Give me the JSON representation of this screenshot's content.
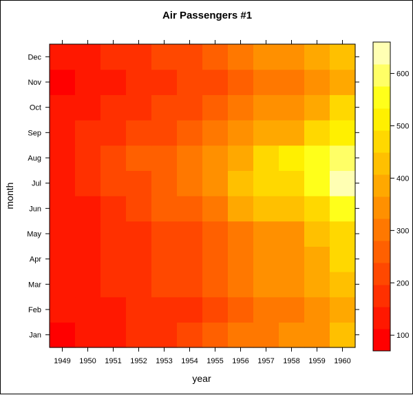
{
  "chart_data": {
    "type": "heatmap",
    "title": "Air Passengers #1",
    "xlabel": "year",
    "ylabel": "month",
    "x": [
      "1949",
      "1950",
      "1951",
      "1952",
      "1953",
      "1954",
      "1955",
      "1956",
      "1957",
      "1958",
      "1959",
      "1960"
    ],
    "y": [
      "Jan",
      "Feb",
      "Mar",
      "Apr",
      "May",
      "Jun",
      "Jul",
      "Aug",
      "Sep",
      "Oct",
      "Nov",
      "Dec"
    ],
    "values": [
      [
        112,
        115,
        145,
        171,
        196,
        204,
        242,
        284,
        315,
        340,
        360,
        417
      ],
      [
        118,
        126,
        150,
        180,
        196,
        188,
        233,
        277,
        301,
        318,
        342,
        391
      ],
      [
        132,
        141,
        178,
        193,
        236,
        235,
        267,
        317,
        356,
        362,
        406,
        419
      ],
      [
        129,
        135,
        163,
        181,
        235,
        227,
        269,
        313,
        348,
        348,
        396,
        461
      ],
      [
        121,
        125,
        172,
        183,
        229,
        234,
        270,
        318,
        355,
        363,
        420,
        472
      ],
      [
        135,
        149,
        178,
        218,
        243,
        264,
        315,
        374,
        422,
        435,
        472,
        535
      ],
      [
        148,
        170,
        199,
        230,
        264,
        302,
        364,
        413,
        465,
        491,
        548,
        622
      ],
      [
        148,
        170,
        199,
        242,
        272,
        293,
        347,
        405,
        467,
        505,
        559,
        606
      ],
      [
        136,
        158,
        184,
        209,
        237,
        259,
        312,
        355,
        404,
        404,
        463,
        508
      ],
      [
        119,
        133,
        162,
        191,
        211,
        229,
        274,
        306,
        347,
        359,
        407,
        461
      ],
      [
        104,
        114,
        146,
        172,
        180,
        203,
        237,
        271,
        305,
        310,
        362,
        390
      ],
      [
        118,
        140,
        166,
        194,
        201,
        229,
        278,
        306,
        336,
        337,
        405,
        432
      ]
    ],
    "colorbar": {
      "range": [
        70,
        660
      ],
      "ticks": [
        100,
        200,
        300,
        400,
        500,
        600
      ],
      "colors": [
        "#FF0000",
        "#FF1800",
        "#FF3000",
        "#FF4800",
        "#FF6000",
        "#FF7800",
        "#FF9000",
        "#FFA800",
        "#FFC000",
        "#FFD800",
        "#FFF000",
        "#FFFF1A",
        "#FFFF66",
        "#FFFFB3"
      ]
    }
  }
}
